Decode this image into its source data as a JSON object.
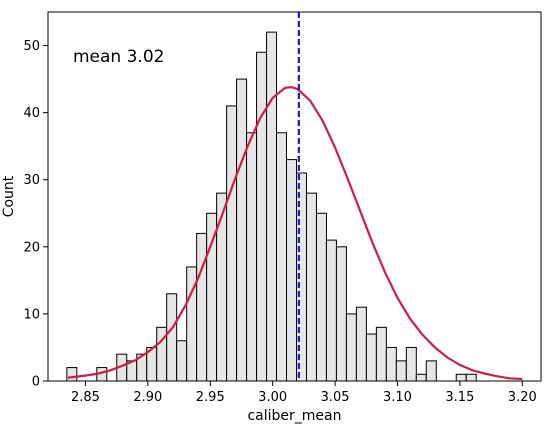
{
  "chart_data": {
    "type": "bar",
    "subtype": "histogram",
    "xlabel": "caliber_mean",
    "ylabel": "Count",
    "xlim": [
      2.82,
      3.215
    ],
    "ylim": [
      0,
      55
    ],
    "xticks": [
      "2.85",
      "2.90",
      "2.95",
      "3.00",
      "3.05",
      "3.10",
      "3.15",
      "3.20"
    ],
    "yticks": [
      "0",
      "10",
      "20",
      "30",
      "40",
      "50"
    ],
    "bin_start": 2.8351,
    "bin_width": 0.008,
    "counts": [
      2,
      0,
      0,
      2,
      0,
      4,
      3,
      4,
      5,
      8,
      13,
      6,
      17,
      22,
      25,
      28,
      41,
      45,
      37,
      49,
      52,
      37,
      33,
      31,
      28,
      25,
      21,
      20,
      10,
      11,
      7,
      8,
      5,
      3,
      5,
      1,
      3,
      0,
      0,
      1,
      1
    ],
    "mean": 3.021,
    "annotation": "mean 3.02",
    "fit_curve": {
      "x": [
        2.836,
        2.85,
        2.86,
        2.87,
        2.88,
        2.89,
        2.9,
        2.91,
        2.92,
        2.93,
        2.94,
        2.95,
        2.96,
        2.97,
        2.98,
        2.99,
        3.0,
        3.01,
        3.015,
        3.02,
        3.03,
        3.04,
        3.05,
        3.06,
        3.07,
        3.08,
        3.09,
        3.1,
        3.11,
        3.12,
        3.13,
        3.14,
        3.15,
        3.16,
        3.17,
        3.18,
        3.19,
        3.2
      ],
      "y": [
        0.5,
        0.8,
        1.1,
        1.6,
        2.3,
        3.1,
        4.3,
        5.8,
        8.0,
        11.2,
        15.2,
        20.0,
        25.0,
        30.2,
        35.0,
        39.2,
        42.2,
        43.7,
        43.8,
        43.5,
        41.8,
        38.8,
        34.8,
        30.2,
        25.4,
        20.6,
        16.2,
        12.4,
        9.3,
        6.9,
        5.0,
        3.5,
        2.4,
        1.6,
        1.1,
        0.7,
        0.4,
        0.3
      ]
    },
    "colors": {
      "bar_fill": "#e6e6e6",
      "bar_edge": "#000000",
      "curve": "#d11d46",
      "mean_line": "#1a1acc"
    },
    "grid": false,
    "legend": "none"
  }
}
